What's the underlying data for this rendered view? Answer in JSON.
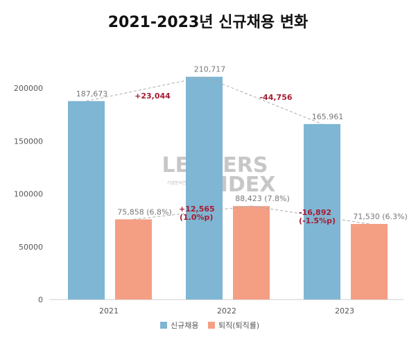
{
  "chart_data": {
    "type": "bar",
    "title": "2021-2023년 신규채용 변화",
    "categories": [
      "2021",
      "2022",
      "2023"
    ],
    "series": [
      {
        "name": "신규채용",
        "color": "#7eb6d3",
        "values": [
          187673,
          210717,
          165961
        ],
        "labels": [
          "187,673",
          "210,717",
          "165.961"
        ]
      },
      {
        "name": "퇴직(퇴직률)",
        "color": "#f49f84",
        "values": [
          75858,
          88423,
          71530
        ],
        "labels": [
          "75,858 (6.8%)",
          "88,423 (7.8%)",
          "71,530 (6.3%)"
        ]
      }
    ],
    "changes": {
      "hires": [
        "+23,044",
        "-44,756"
      ],
      "retire": [
        [
          "+12,565",
          "(1.0%p)"
        ],
        [
          "-16,892",
          "(-1.5%p)"
        ]
      ]
    },
    "ylim": [
      0,
      200000
    ],
    "yticks": [
      "0",
      "50000",
      "100000",
      "150000",
      "200000"
    ],
    "grid": false,
    "legend_position": "bottom",
    "change_color": "#a61b32",
    "watermark": {
      "line1": "LEADERS",
      "line2": "INDEX",
      "sub": "기업분석연구소"
    }
  }
}
